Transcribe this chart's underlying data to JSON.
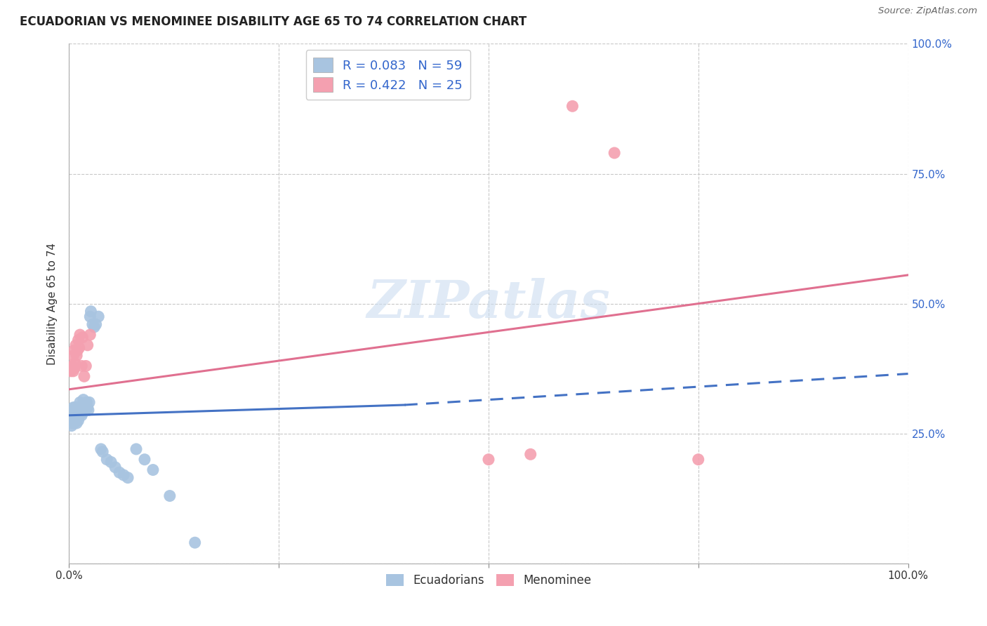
{
  "title": "ECUADORIAN VS MENOMINEE DISABILITY AGE 65 TO 74 CORRELATION CHART",
  "source": "Source: ZipAtlas.com",
  "ylabel": "Disability Age 65 to 74",
  "xlim": [
    0.0,
    1.0
  ],
  "ylim": [
    0.0,
    1.0
  ],
  "x_ticks": [
    0.0,
    0.25,
    0.5,
    0.75,
    1.0
  ],
  "x_tick_labels": [
    "0.0%",
    "",
    "",
    "",
    "100.0%"
  ],
  "y_ticks": [
    0.25,
    0.5,
    0.75,
    1.0
  ],
  "y_tick_labels_right": [
    "25.0%",
    "50.0%",
    "75.0%",
    "100.0%"
  ],
  "ecuadorians_color": "#a8c4e0",
  "menominee_color": "#f4a0b0",
  "ecu_line_color": "#4472c4",
  "men_line_color": "#e07090",
  "ecuadorians_R": 0.083,
  "ecuadorians_N": 59,
  "menominee_R": 0.422,
  "menominee_N": 25,
  "legend_text_color": "#3366cc",
  "watermark": "ZIPatlas",
  "background_color": "#ffffff",
  "grid_color": "#c8c8c8",
  "ecuadorians_x": [
    0.002,
    0.003,
    0.004,
    0.004,
    0.005,
    0.005,
    0.005,
    0.006,
    0.006,
    0.006,
    0.007,
    0.007,
    0.007,
    0.008,
    0.008,
    0.008,
    0.009,
    0.009,
    0.009,
    0.01,
    0.01,
    0.01,
    0.011,
    0.011,
    0.012,
    0.012,
    0.013,
    0.013,
    0.014,
    0.015,
    0.015,
    0.016,
    0.017,
    0.018,
    0.019,
    0.02,
    0.021,
    0.022,
    0.023,
    0.024,
    0.025,
    0.026,
    0.028,
    0.03,
    0.032,
    0.035,
    0.038,
    0.04,
    0.045,
    0.05,
    0.055,
    0.06,
    0.065,
    0.07,
    0.08,
    0.09,
    0.1,
    0.12,
    0.15
  ],
  "ecuadorians_y": [
    0.28,
    0.265,
    0.27,
    0.28,
    0.275,
    0.285,
    0.3,
    0.27,
    0.285,
    0.295,
    0.28,
    0.29,
    0.3,
    0.275,
    0.285,
    0.3,
    0.27,
    0.28,
    0.295,
    0.28,
    0.29,
    0.3,
    0.275,
    0.29,
    0.285,
    0.3,
    0.29,
    0.31,
    0.3,
    0.285,
    0.3,
    0.29,
    0.315,
    0.3,
    0.295,
    0.305,
    0.31,
    0.3,
    0.295,
    0.31,
    0.475,
    0.485,
    0.46,
    0.455,
    0.46,
    0.475,
    0.22,
    0.215,
    0.2,
    0.195,
    0.185,
    0.175,
    0.17,
    0.165,
    0.22,
    0.2,
    0.18,
    0.13,
    0.04
  ],
  "menominee_x": [
    0.002,
    0.003,
    0.004,
    0.005,
    0.005,
    0.006,
    0.006,
    0.007,
    0.008,
    0.009,
    0.01,
    0.011,
    0.012,
    0.013,
    0.015,
    0.016,
    0.018,
    0.02,
    0.022,
    0.025,
    0.5,
    0.55,
    0.6,
    0.65,
    0.75
  ],
  "menominee_y": [
    0.37,
    0.375,
    0.38,
    0.37,
    0.4,
    0.375,
    0.41,
    0.385,
    0.42,
    0.4,
    0.41,
    0.43,
    0.415,
    0.44,
    0.38,
    0.435,
    0.36,
    0.38,
    0.42,
    0.44,
    0.2,
    0.21,
    0.88,
    0.79,
    0.2
  ],
  "ecu_line_x_start": 0.0,
  "ecu_line_x_solid_end": 0.4,
  "ecu_line_x_end": 1.0,
  "ecu_line_y_start": 0.285,
  "ecu_line_y_solid_end": 0.305,
  "ecu_line_y_end": 0.365,
  "men_line_x_start": 0.0,
  "men_line_x_end": 1.0,
  "men_line_y_start": 0.335,
  "men_line_y_end": 0.555
}
